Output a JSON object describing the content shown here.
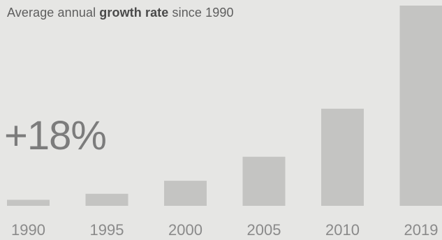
{
  "title": {
    "prefix": "Average annual",
    "emphasis": "growth rate",
    "suffix": "since 1990"
  },
  "headline_value": "+18%",
  "colors": {
    "background": "#e6e6e4",
    "bar": "#c4c4c2",
    "text": "#5e5e5e",
    "tick": "#8a8a8a"
  },
  "chart_data": {
    "type": "bar",
    "title": "Average annual growth rate since 1990",
    "categories": [
      "1990",
      "1995",
      "2000",
      "2005",
      "2010",
      "2019"
    ],
    "values": [
      3,
      6,
      12.5,
      24.5,
      48.5,
      100
    ],
    "ylim": [
      0,
      100
    ],
    "grid": false,
    "xlabel": "",
    "ylabel": ""
  }
}
